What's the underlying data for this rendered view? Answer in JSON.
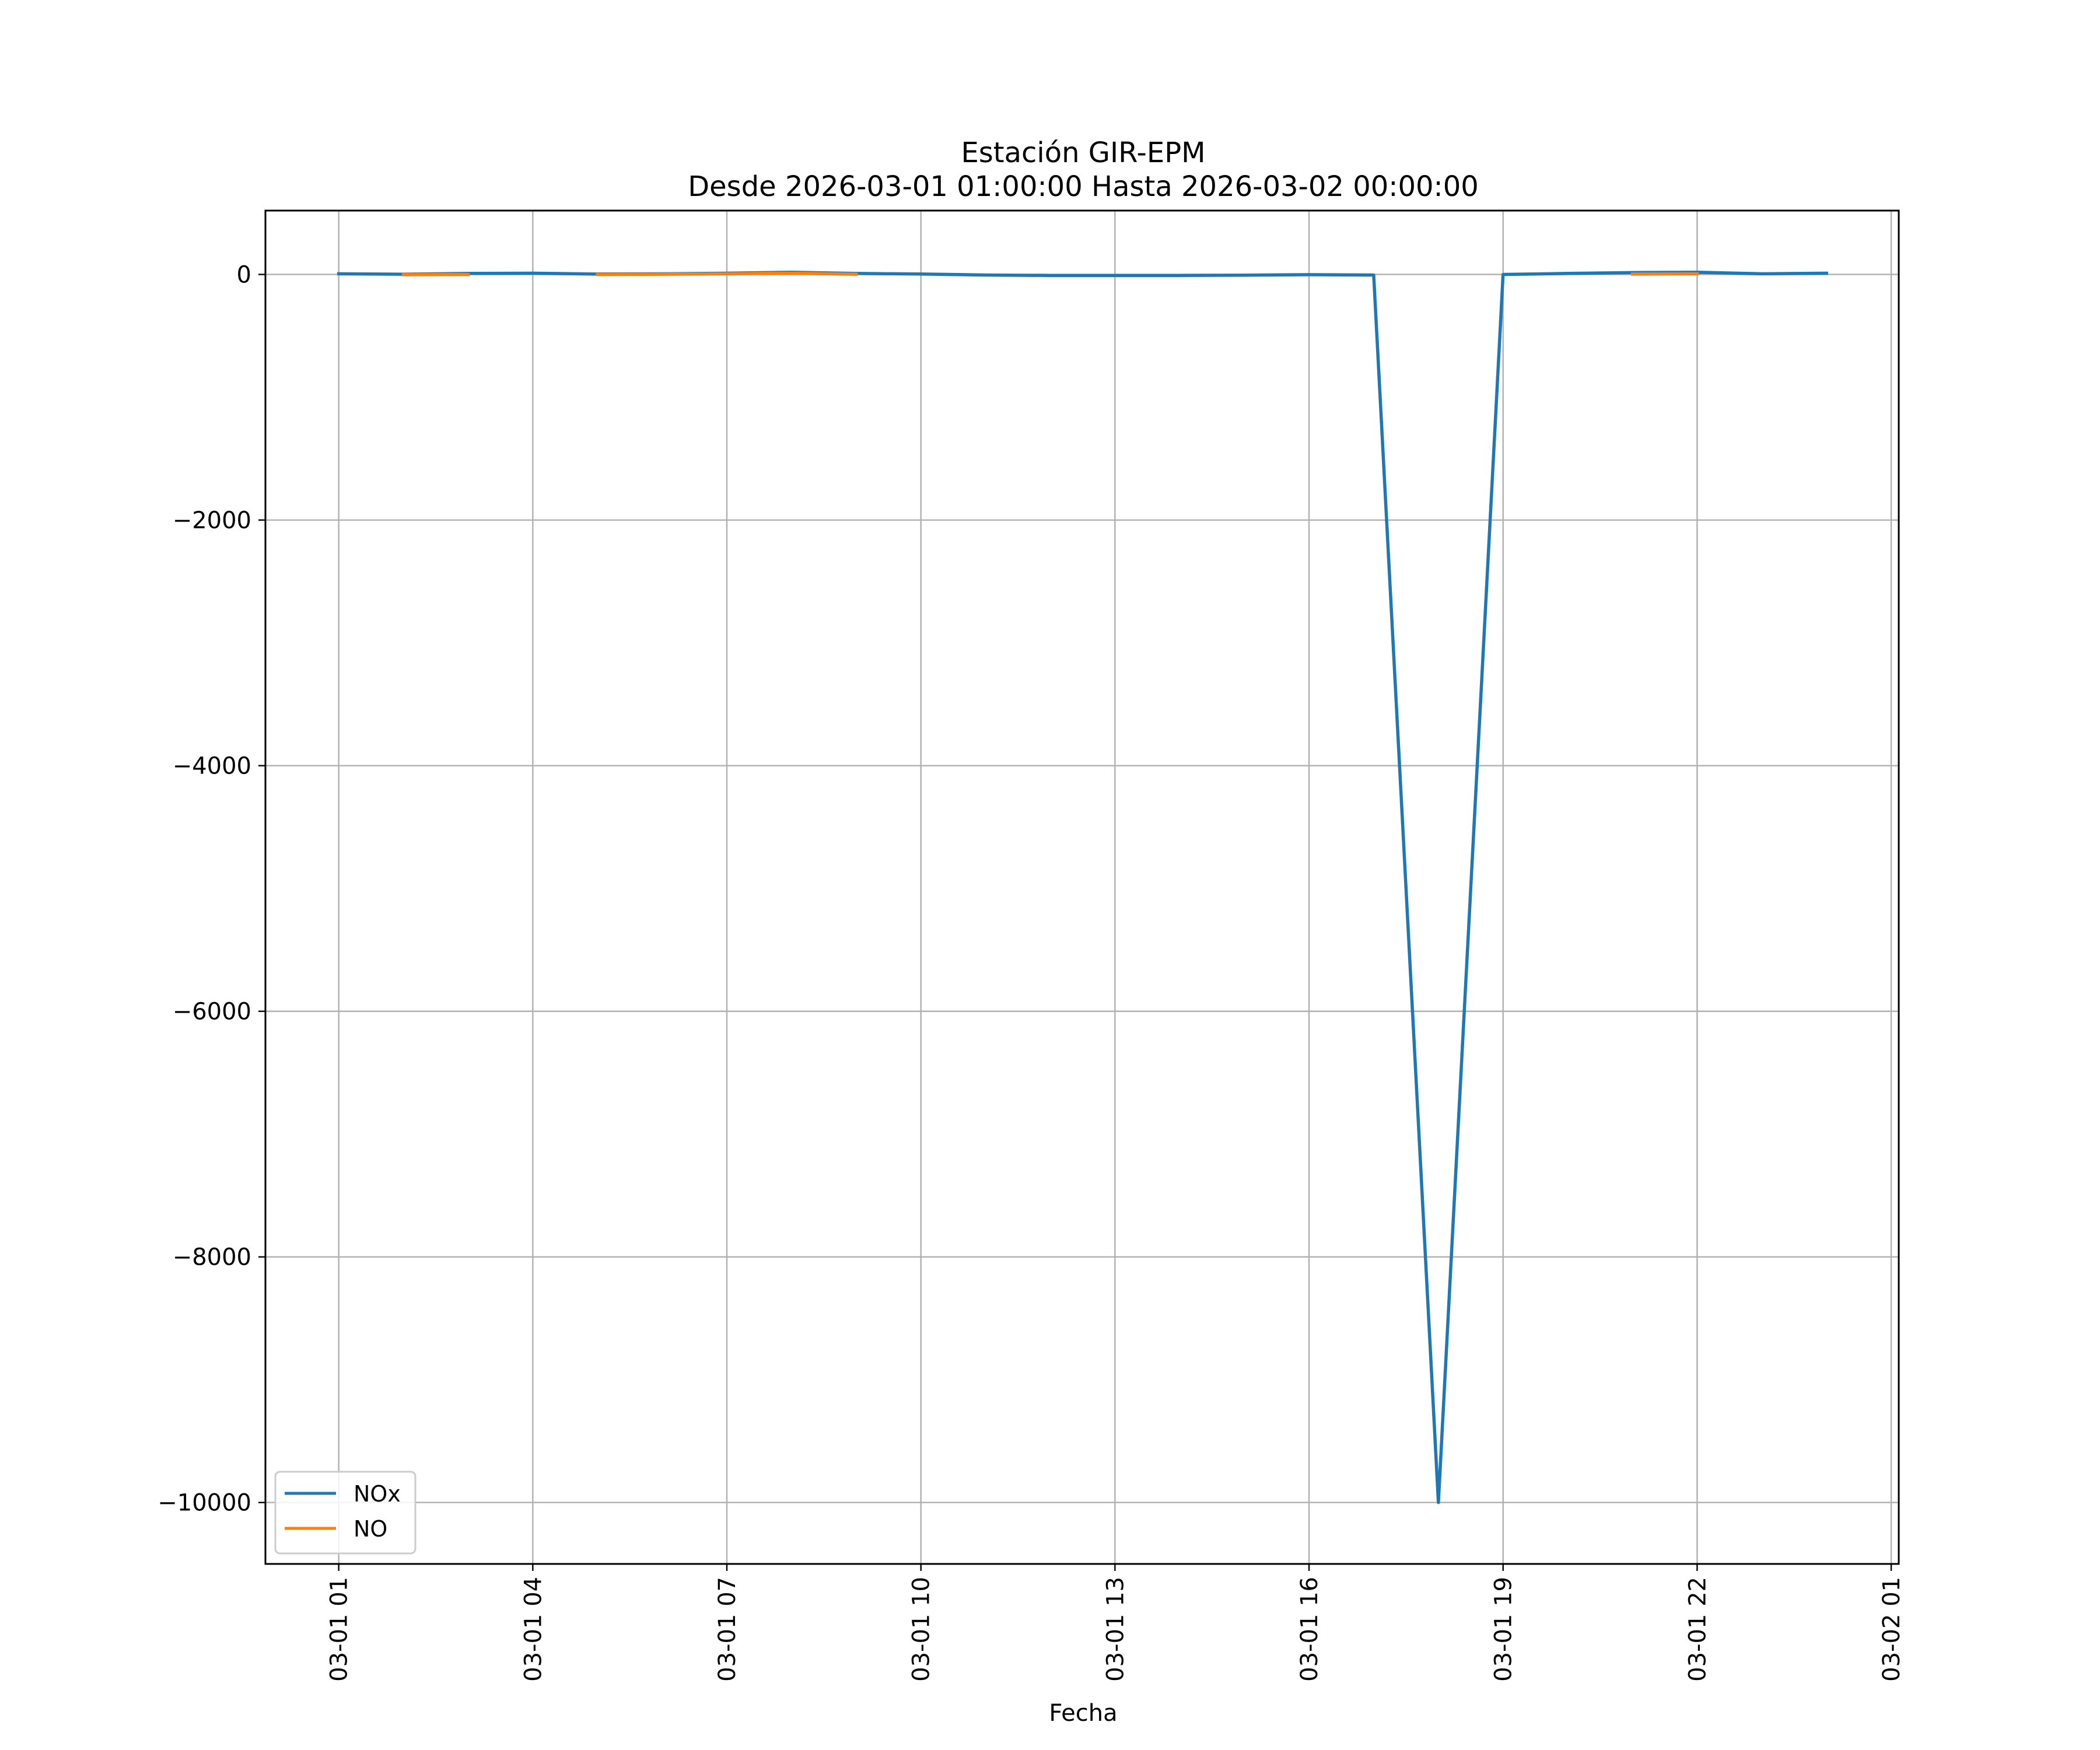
{
  "chart_data": {
    "type": "line",
    "title": "Estación GIR-EPM",
    "subtitle": "Desde 2026-03-01 01:00:00 Hasta 2026-03-02 00:00:00",
    "xlabel": "Fecha",
    "ylabel": "",
    "x_tick_labels": [
      "03-01 01",
      "03-01 04",
      "03-01 07",
      "03-01 10",
      "03-01 13",
      "03-01 16",
      "03-01 19",
      "03-01 22",
      "03-02 01"
    ],
    "x_ticks": [
      "2026-03-01 01:00",
      "2026-03-01 04:00",
      "2026-03-01 07:00",
      "2026-03-01 10:00",
      "2026-03-01 13:00",
      "2026-03-01 16:00",
      "2026-03-01 19:00",
      "2026-03-01 22:00",
      "2026-03-02 01:00"
    ],
    "y_ticks": [
      0,
      -2000,
      -4000,
      -6000,
      -8000,
      -10000
    ],
    "y_tick_labels": [
      "0",
      "−2000",
      "−4000",
      "−6000",
      "−8000",
      "−10000"
    ],
    "xlim": [
      "2026-02-28 23:52",
      "2026-03-02 01:07"
    ],
    "ylim": [
      -10500,
      520
    ],
    "grid": true,
    "legend_position": "lower-left",
    "series": [
      {
        "name": "NOx",
        "color": "#1f77b4",
        "points": [
          [
            "2026-03-01 01:00",
            5
          ],
          [
            "2026-03-01 02:00",
            2
          ],
          [
            "2026-03-01 03:00",
            8
          ],
          [
            "2026-03-01 04:00",
            10
          ],
          [
            "2026-03-01 05:00",
            3
          ],
          [
            "2026-03-01 06:00",
            5
          ],
          [
            "2026-03-01 07:00",
            10
          ],
          [
            "2026-03-01 08:00",
            18
          ],
          [
            "2026-03-01 09:00",
            8
          ],
          [
            "2026-03-01 10:00",
            3
          ],
          [
            "2026-03-01 11:00",
            -5
          ],
          [
            "2026-03-01 12:00",
            -8
          ],
          [
            "2026-03-01 13:00",
            -8
          ],
          [
            "2026-03-01 14:00",
            -8
          ],
          [
            "2026-03-01 15:00",
            -6
          ],
          [
            "2026-03-01 16:00",
            -2
          ],
          [
            "2026-03-01 17:00",
            -5
          ],
          [
            "2026-03-01 18:00",
            -10000
          ],
          [
            "2026-03-01 19:00",
            0
          ],
          [
            "2026-03-01 20:00",
            8
          ],
          [
            "2026-03-01 21:00",
            15
          ],
          [
            "2026-03-01 22:00",
            18
          ],
          [
            "2026-03-01 23:00",
            5
          ],
          [
            "2026-03-02 00:00",
            10
          ]
        ]
      },
      {
        "name": "NO",
        "color": "#ff7f0e",
        "segments": [
          [
            [
              "2026-03-01 02:00",
              -2
            ],
            [
              "2026-03-01 03:00",
              0
            ]
          ],
          [
            [
              "2026-03-01 05:00",
              0
            ],
            [
              "2026-03-01 06:00",
              2
            ],
            [
              "2026-03-01 07:00",
              5
            ],
            [
              "2026-03-01 08:00",
              10
            ],
            [
              "2026-03-01 09:00",
              2
            ]
          ],
          [
            [
              "2026-03-01 21:00",
              3
            ],
            [
              "2026-03-01 22:00",
              5
            ]
          ]
        ]
      }
    ]
  }
}
